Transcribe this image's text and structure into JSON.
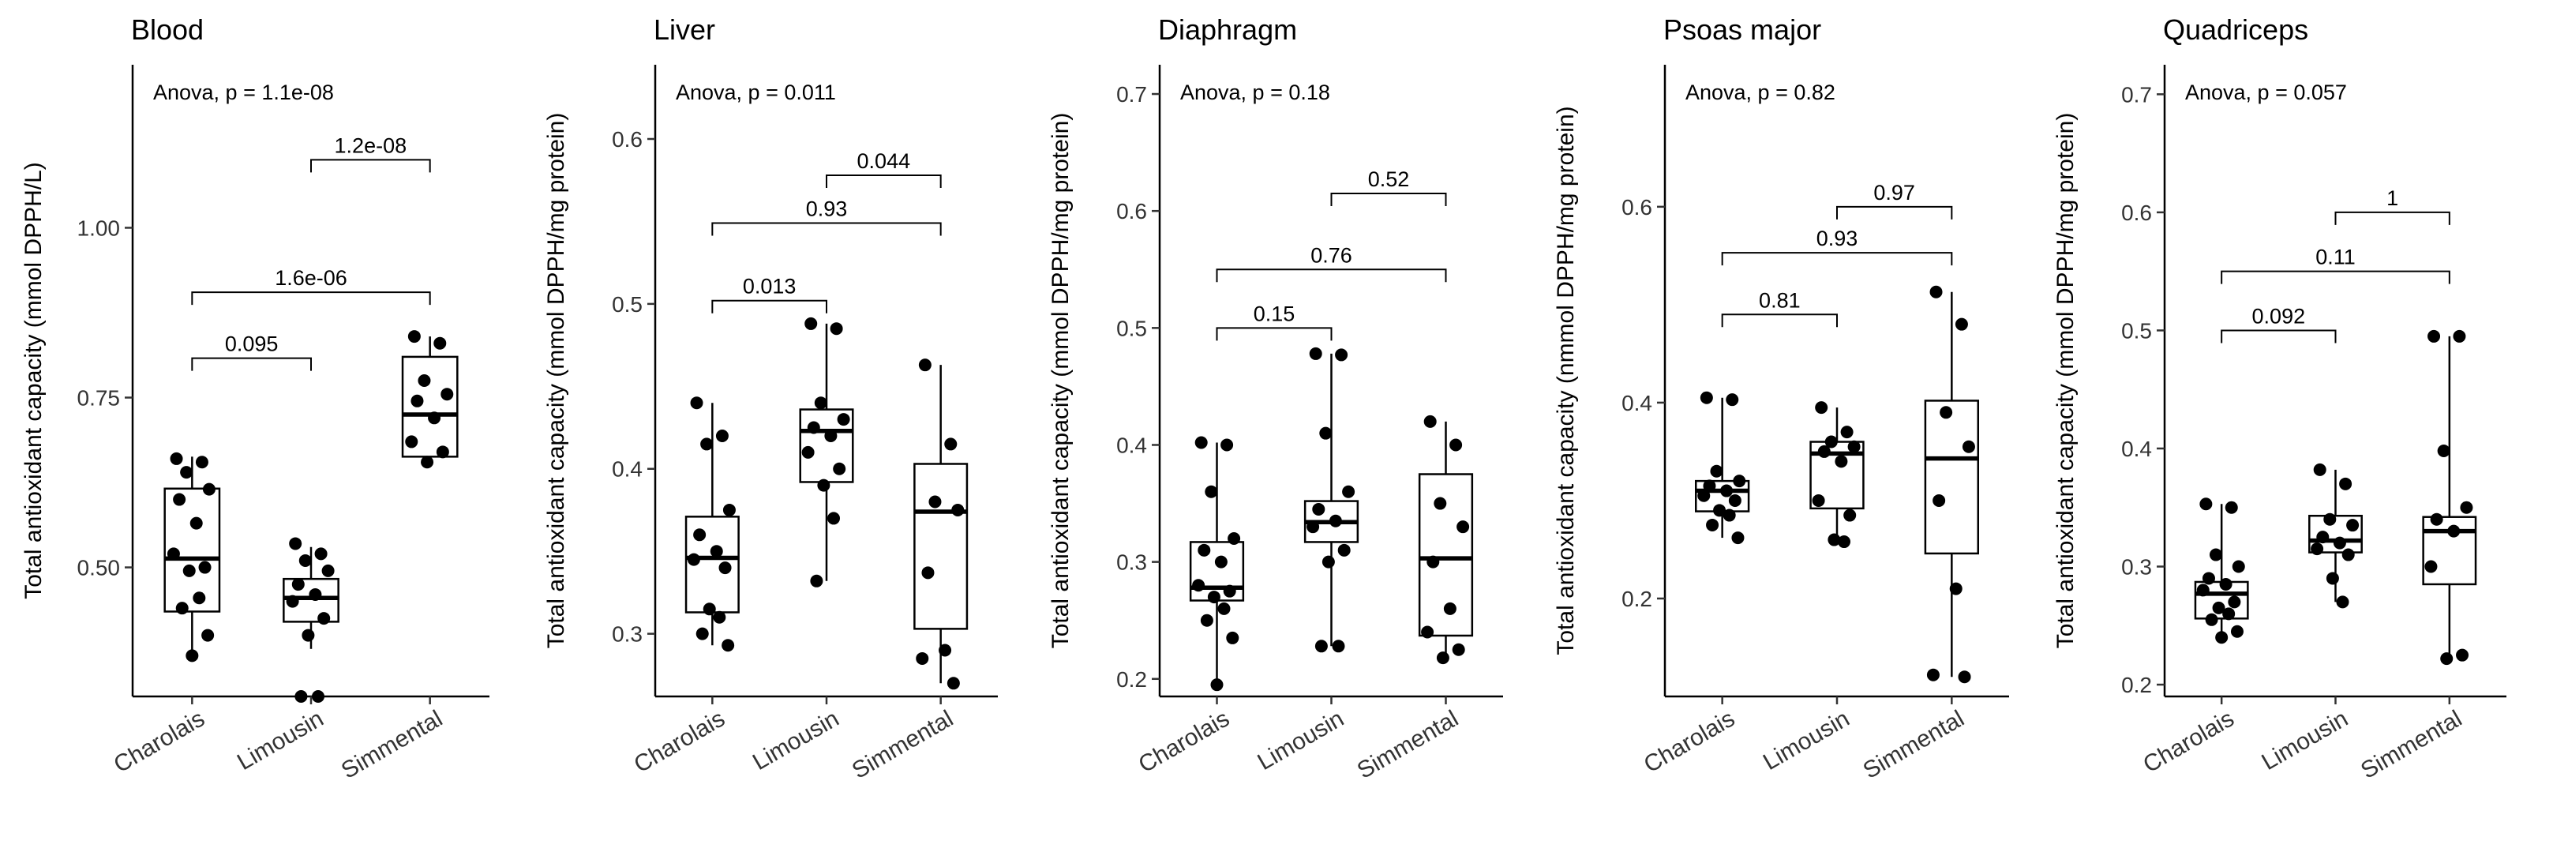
{
  "figure": {
    "colors": {
      "box_fill": "#ffffff",
      "stroke": "#000000",
      "point": "#000000"
    }
  },
  "chart_data": [
    {
      "type": "box",
      "title": "Blood",
      "ylabel": "Total antioxidant capacity  (mmol DPPH/L)",
      "annotation": "Anova, p = 1.1e-08",
      "categories": [
        "Charolais",
        "Limousin",
        "Simmental"
      ],
      "yticks": [
        0.5,
        0.75,
        1.0
      ],
      "ytick_labels": [
        "0.50",
        "0.75",
        "1.00"
      ],
      "ylim": [
        0.31,
        1.24
      ],
      "boxes": [
        {
          "min": 0.37,
          "q1": 0.435,
          "median": 0.513,
          "q3": 0.616,
          "max": 0.663
        },
        {
          "min": 0.38,
          "q1": 0.42,
          "median": 0.455,
          "q3": 0.483,
          "max": 0.53
        },
        {
          "min": 0.655,
          "q1": 0.663,
          "median": 0.725,
          "q3": 0.81,
          "max": 0.84
        }
      ],
      "points": [
        [
          0.66,
          0.655,
          0.64,
          0.615,
          0.6,
          0.565,
          0.52,
          0.5,
          0.495,
          0.455,
          0.44,
          0.4,
          0.37
        ],
        [
          0.535,
          0.52,
          0.51,
          0.495,
          0.475,
          0.46,
          0.45,
          0.425,
          0.4,
          0.31,
          0.31
        ],
        [
          0.84,
          0.83,
          0.775,
          0.755,
          0.745,
          0.72,
          0.685,
          0.67,
          0.655
        ]
      ],
      "brackets": [
        {
          "from": 1,
          "to": 2,
          "y": 1.1,
          "label": "1.2e-08"
        },
        {
          "from": 0,
          "to": 2,
          "y": 0.905,
          "label": "1.6e-06"
        },
        {
          "from": 0,
          "to": 1,
          "y": 0.808,
          "label": "0.095"
        }
      ]
    },
    {
      "type": "box",
      "title": "Liver",
      "ylabel": "Total antioxidant capacity  (mmol DPPH/mg protein)",
      "annotation": "Anova, p = 0.011",
      "categories": [
        "Charolais",
        "Limousin",
        "Simmental"
      ],
      "yticks": [
        0.3,
        0.4,
        0.5,
        0.6
      ],
      "ytick_labels": [
        "0.3",
        "0.4",
        "0.5",
        "0.6"
      ],
      "ylim": [
        0.262,
        0.645
      ],
      "boxes": [
        {
          "min": 0.293,
          "q1": 0.313,
          "median": 0.346,
          "q3": 0.371,
          "max": 0.44
        },
        {
          "min": 0.332,
          "q1": 0.392,
          "median": 0.423,
          "q3": 0.436,
          "max": 0.488
        },
        {
          "min": 0.27,
          "q1": 0.303,
          "median": 0.374,
          "q3": 0.403,
          "max": 0.463
        }
      ],
      "points": [
        [
          0.44,
          0.42,
          0.415,
          0.375,
          0.36,
          0.35,
          0.345,
          0.34,
          0.315,
          0.31,
          0.3,
          0.293
        ],
        [
          0.488,
          0.485,
          0.44,
          0.43,
          0.425,
          0.42,
          0.41,
          0.4,
          0.39,
          0.37,
          0.332
        ],
        [
          0.463,
          0.415,
          0.38,
          0.375,
          0.337,
          0.29,
          0.285,
          0.27
        ]
      ],
      "brackets": [
        {
          "from": 1,
          "to": 2,
          "y": 0.578,
          "label": "0.044"
        },
        {
          "from": 0,
          "to": 2,
          "y": 0.549,
          "label": "0.93"
        },
        {
          "from": 0,
          "to": 1,
          "y": 0.502,
          "label": "0.013"
        }
      ]
    },
    {
      "type": "box",
      "title": "Diaphragm",
      "ylabel": "Total antioxidant capacity  (mmol DPPH/mg protein)",
      "annotation": "Anova, p = 0.18",
      "categories": [
        "Charolais",
        "Limousin",
        "Simmental"
      ],
      "yticks": [
        0.2,
        0.3,
        0.4,
        0.5,
        0.6,
        0.7
      ],
      "ytick_labels": [
        "0.2",
        "0.3",
        "0.4",
        "0.5",
        "0.6",
        "0.7"
      ],
      "ylim": [
        0.185,
        0.725
      ],
      "boxes": [
        {
          "min": 0.195,
          "q1": 0.267,
          "median": 0.278,
          "q3": 0.317,
          "max": 0.402
        },
        {
          "min": 0.228,
          "q1": 0.317,
          "median": 0.334,
          "q3": 0.352,
          "max": 0.478
        },
        {
          "min": 0.218,
          "q1": 0.237,
          "median": 0.303,
          "q3": 0.375,
          "max": 0.42
        }
      ],
      "points": [
        [
          0.402,
          0.4,
          0.36,
          0.32,
          0.31,
          0.3,
          0.28,
          0.275,
          0.27,
          0.26,
          0.25,
          0.235,
          0.195
        ],
        [
          0.478,
          0.477,
          0.41,
          0.36,
          0.345,
          0.335,
          0.33,
          0.31,
          0.3,
          0.228,
          0.228
        ],
        [
          0.42,
          0.4,
          0.35,
          0.33,
          0.3,
          0.26,
          0.24,
          0.225,
          0.218
        ]
      ],
      "brackets": [
        {
          "from": 1,
          "to": 2,
          "y": 0.615,
          "label": "0.52"
        },
        {
          "from": 0,
          "to": 2,
          "y": 0.55,
          "label": "0.76"
        },
        {
          "from": 0,
          "to": 1,
          "y": 0.5,
          "label": "0.15"
        }
      ]
    },
    {
      "type": "box",
      "title": "Psoas major",
      "ylabel": "Total antioxidant capacity  (nmmol DPPH/mg protein)",
      "annotation": "Anova, p = 0.82",
      "categories": [
        "Charolais",
        "Limousin",
        "Simmental"
      ],
      "yticks": [
        0.2,
        0.4,
        0.6
      ],
      "ytick_labels": [
        "0.2",
        "0.4",
        "0.6"
      ],
      "ylim": [
        0.1,
        0.745
      ],
      "boxes": [
        {
          "min": 0.262,
          "q1": 0.289,
          "median": 0.31,
          "q3": 0.32,
          "max": 0.405
        },
        {
          "min": 0.258,
          "q1": 0.292,
          "median": 0.348,
          "q3": 0.36,
          "max": 0.395
        },
        {
          "min": 0.12,
          "q1": 0.246,
          "median": 0.343,
          "q3": 0.402,
          "max": 0.513
        }
      ],
      "points": [
        [
          0.405,
          0.403,
          0.33,
          0.32,
          0.315,
          0.31,
          0.305,
          0.3,
          0.29,
          0.285,
          0.275,
          0.262
        ],
        [
          0.395,
          0.37,
          0.36,
          0.355,
          0.35,
          0.34,
          0.3,
          0.285,
          0.26,
          0.258
        ],
        [
          0.513,
          0.48,
          0.39,
          0.355,
          0.3,
          0.21,
          0.122,
          0.12
        ]
      ],
      "brackets": [
        {
          "from": 1,
          "to": 2,
          "y": 0.6,
          "label": "0.97"
        },
        {
          "from": 0,
          "to": 2,
          "y": 0.553,
          "label": "0.93"
        },
        {
          "from": 0,
          "to": 1,
          "y": 0.49,
          "label": "0.81"
        }
      ]
    },
    {
      "type": "box",
      "title": "Quadriceps",
      "ylabel": "Total antioxidant capacity  (mmol DPPH/mg protein)",
      "annotation": "Anova, p = 0.057",
      "categories": [
        "Charolais",
        "Limousin",
        "Simmental"
      ],
      "yticks": [
        0.2,
        0.3,
        0.4,
        0.5,
        0.6,
        0.7
      ],
      "ytick_labels": [
        "0.2",
        "0.3",
        "0.4",
        "0.5",
        "0.6",
        "0.7"
      ],
      "ylim": [
        0.19,
        0.725
      ],
      "boxes": [
        {
          "min": 0.24,
          "q1": 0.256,
          "median": 0.277,
          "q3": 0.287,
          "max": 0.353
        },
        {
          "min": 0.27,
          "q1": 0.312,
          "median": 0.322,
          "q3": 0.343,
          "max": 0.382
        },
        {
          "min": 0.222,
          "q1": 0.285,
          "median": 0.33,
          "q3": 0.342,
          "max": 0.495
        }
      ],
      "points": [
        [
          0.353,
          0.35,
          0.31,
          0.3,
          0.29,
          0.285,
          0.28,
          0.27,
          0.265,
          0.26,
          0.255,
          0.245,
          0.24
        ],
        [
          0.382,
          0.37,
          0.34,
          0.335,
          0.325,
          0.32,
          0.315,
          0.31,
          0.29,
          0.27
        ],
        [
          0.495,
          0.495,
          0.398,
          0.35,
          0.34,
          0.33,
          0.3,
          0.225,
          0.222
        ]
      ],
      "brackets": [
        {
          "from": 1,
          "to": 2,
          "y": 0.6,
          "label": "1"
        },
        {
          "from": 0,
          "to": 2,
          "y": 0.55,
          "label": "0.11"
        },
        {
          "from": 0,
          "to": 1,
          "y": 0.5,
          "label": "0.092"
        }
      ]
    }
  ]
}
